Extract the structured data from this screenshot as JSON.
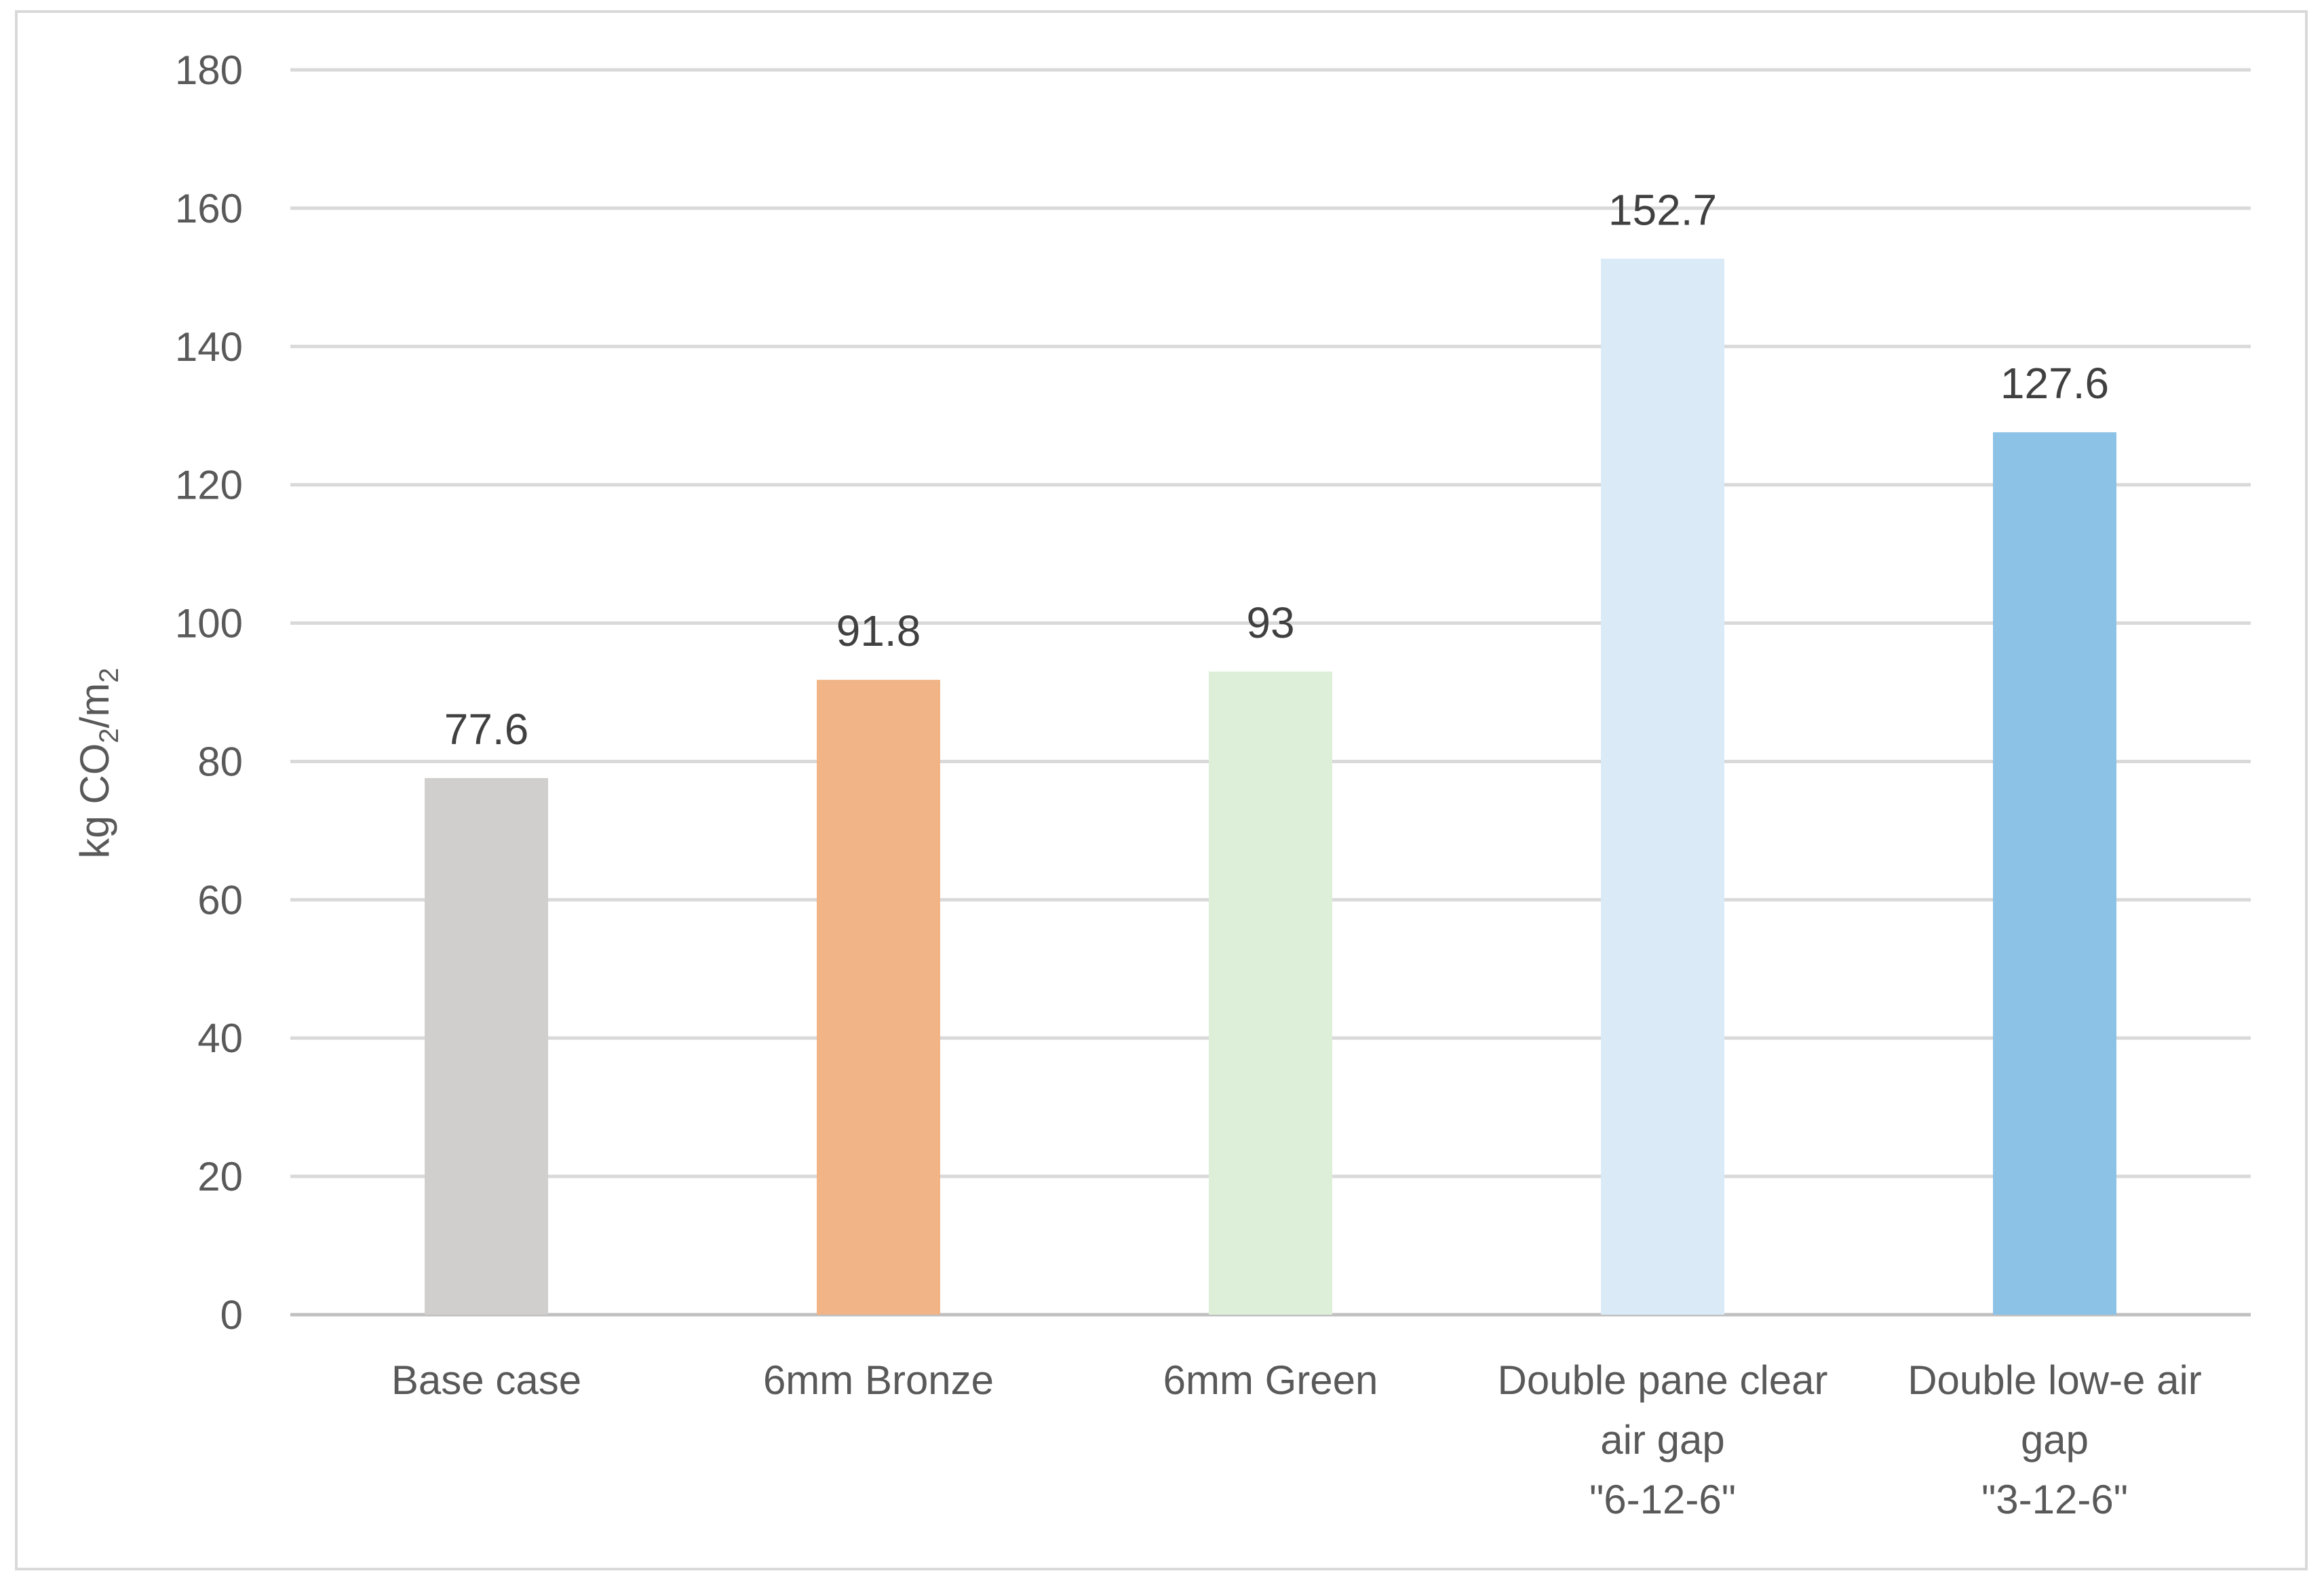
{
  "chart_data": {
    "type": "bar",
    "categories": [
      [
        "Base case"
      ],
      [
        "6mm Bronze"
      ],
      [
        "6mm Green"
      ],
      [
        "Double pane clear",
        "air gap",
        "\"6-12-6\""
      ],
      [
        "Double low-e air",
        "gap",
        "\"3-12-6\""
      ]
    ],
    "values": [
      77.6,
      91.8,
      93,
      152.7,
      127.6
    ],
    "data_labels": [
      "77.6",
      "91.8",
      "93",
      "152.7",
      "127.6"
    ],
    "bar_colors": [
      "#d0cfcd",
      "#f0b487",
      "#ddefd8",
      "#daeaf7",
      "#8cc2e6"
    ],
    "ylabel": {
      "main": "kg CO",
      "sub1": "2",
      "mid": "/m",
      "sub2": "2"
    },
    "ylim": [
      0,
      180
    ],
    "yticks": [
      0,
      20,
      40,
      60,
      80,
      100,
      120,
      140,
      160,
      180
    ],
    "grid": true,
    "legend": "none"
  }
}
